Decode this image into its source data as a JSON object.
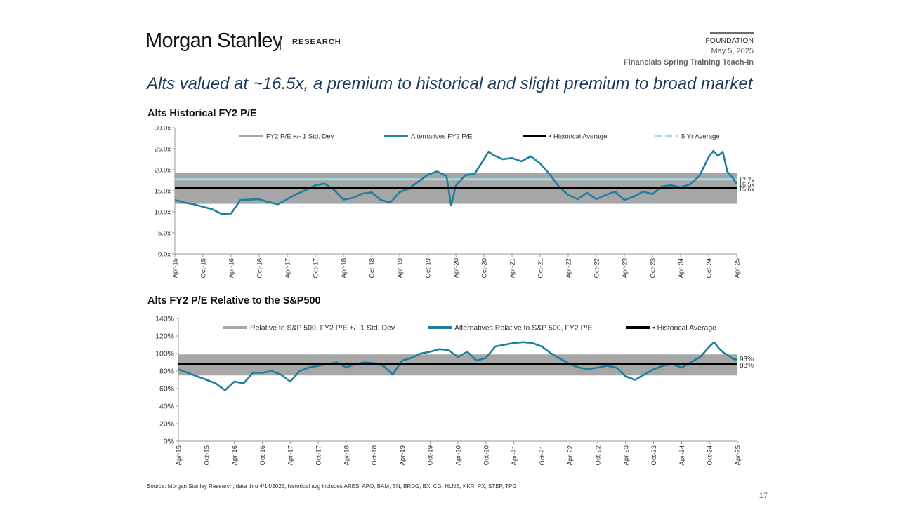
{
  "header": {
    "brand": "Morgan Stanley",
    "brand_sub": "RESEARCH",
    "tag": "FOUNDATION",
    "date": "May 5, 2025",
    "event": "Financials Spring Training Teach-In"
  },
  "title": "Alts valued at ~16.5x, a premium to historical and slight premium to broad market",
  "source": "Source: Morgan Stanley Research; data thru 4/14/2025, historical avg includes ARES, APO, BAM, BN, BRDG, BX, CG, HLNE, KKR, PX, STEP, TPG",
  "page_number": "17",
  "colors": {
    "band": "#a6a6a6",
    "line": "#1f7f9f",
    "average": "#000000",
    "five_yr": "#9fdcea"
  },
  "chart_data": [
    {
      "type": "line",
      "title": "Alts Historical FY2 P/E",
      "ylim": [
        0,
        30
      ],
      "y_ticks": [
        "0.0x",
        "5.0x",
        "10.0x",
        "15.0x",
        "20.0x",
        "25.0x",
        "30.0x"
      ],
      "x_ticks": [
        "Apr-15",
        "Oct-15",
        "Apr-16",
        "Oct-16",
        "Apr-17",
        "Oct-17",
        "Apr-18",
        "Oct-18",
        "Apr-19",
        "Oct-19",
        "Apr-20",
        "Oct-20",
        "Apr-21",
        "Oct-21",
        "Apr-22",
        "Oct-22",
        "Apr-23",
        "Oct-23",
        "Apr-24",
        "Oct-24",
        "Apr-25"
      ],
      "legend": [
        "FY2 P/E +/- 1 Std. Dev",
        "Alternatives FY2 P/E",
        "Historical Average",
        "5 Yr Average"
      ],
      "band": [
        11.9,
        19.3
      ],
      "historical_average": 15.6,
      "five_yr_average": 17.7,
      "end_labels": [
        "17.7x",
        "16.5x",
        "15.6x"
      ],
      "series": [
        {
          "name": "Alternatives FY2 P/E",
          "x": [
            "Apr-15",
            "Jun-15",
            "Aug-15",
            "Oct-15",
            "Dec-15",
            "Feb-16",
            "Apr-16",
            "Jun-16",
            "Aug-16",
            "Oct-16",
            "Dec-16",
            "Feb-17",
            "Apr-17",
            "Jun-17",
            "Aug-17",
            "Oct-17",
            "Dec-17",
            "Feb-18",
            "Apr-18",
            "Jun-18",
            "Aug-18",
            "Oct-18",
            "Dec-18",
            "Feb-19",
            "Apr-19",
            "Jun-19",
            "Aug-19",
            "Oct-19",
            "Dec-19",
            "Feb-20",
            "Mar-20",
            "Apr-20",
            "Jun-20",
            "Aug-20",
            "Oct-20",
            "Nov-20",
            "Dec-20",
            "Feb-21",
            "Apr-21",
            "Jun-21",
            "Aug-21",
            "Oct-21",
            "Dec-21",
            "Feb-22",
            "Apr-22",
            "Jun-22",
            "Aug-22",
            "Oct-22",
            "Dec-22",
            "Feb-23",
            "Apr-23",
            "Jun-23",
            "Aug-23",
            "Oct-23",
            "Dec-23",
            "Feb-24",
            "Apr-24",
            "Jun-24",
            "Aug-24",
            "Oct-24",
            "Nov-24",
            "Dec-24",
            "Jan-25",
            "Feb-25",
            "Mar-25",
            "Apr-25"
          ],
          "values": [
            12.8,
            12.2,
            11.8,
            11.2,
            10.6,
            9.5,
            9.6,
            12.8,
            12.9,
            13.0,
            12.3,
            11.8,
            13.0,
            14.2,
            15.2,
            16.3,
            16.7,
            15.2,
            12.9,
            13.3,
            14.3,
            14.6,
            12.8,
            12.2,
            14.7,
            15.5,
            17.2,
            18.8,
            19.6,
            18.5,
            11.5,
            16.2,
            18.7,
            19.0,
            22.5,
            24.3,
            23.5,
            22.5,
            22.8,
            22.0,
            23.2,
            21.5,
            19.0,
            16.0,
            14.0,
            13.0,
            14.5,
            13.0,
            14.0,
            14.8,
            12.8,
            13.6,
            14.8,
            14.2,
            16.0,
            16.3,
            15.8,
            16.5,
            18.5,
            23.0,
            24.5,
            23.3,
            24.3,
            19.5,
            18.3,
            16.5
          ]
        }
      ]
    },
    {
      "type": "line",
      "title": "Alts FY2 P/E Relative to the S&P500",
      "ylim": [
        0,
        140
      ],
      "y_ticks": [
        "0%",
        "20%",
        "40%",
        "60%",
        "80%",
        "100%",
        "120%",
        "140%"
      ],
      "x_ticks": [
        "Apr-15",
        "Oct-15",
        "Apr-16",
        "Oct-16",
        "Apr-17",
        "Oct-17",
        "Apr-18",
        "Oct-18",
        "Apr-19",
        "Oct-19",
        "Apr-20",
        "Oct-20",
        "Apr-21",
        "Oct-21",
        "Apr-22",
        "Oct-22",
        "Apr-23",
        "Oct-23",
        "Apr-24",
        "Oct-24",
        "Apr-25"
      ],
      "legend": [
        "Relative to S&P 500, FY2 P/E +/- 1 Std. Dev",
        "Alternatives Relative to S&P 500, FY2 P/E",
        "Historical Average"
      ],
      "band": [
        75,
        99
      ],
      "historical_average": 88,
      "end_labels": [
        "93%",
        "88%"
      ],
      "series": [
        {
          "name": "Alternatives Relative to S&P 500, FY2 P/E",
          "x": [
            "Apr-15",
            "Jun-15",
            "Aug-15",
            "Oct-15",
            "Dec-15",
            "Feb-16",
            "Apr-16",
            "Jun-16",
            "Aug-16",
            "Oct-16",
            "Dec-16",
            "Feb-17",
            "Apr-17",
            "Jun-17",
            "Aug-17",
            "Oct-17",
            "Dec-17",
            "Feb-18",
            "Apr-18",
            "Jun-18",
            "Aug-18",
            "Oct-18",
            "Dec-18",
            "Feb-19",
            "Apr-19",
            "Jun-19",
            "Aug-19",
            "Oct-19",
            "Dec-19",
            "Feb-20",
            "Apr-20",
            "Jun-20",
            "Aug-20",
            "Oct-20",
            "Dec-20",
            "Feb-21",
            "Apr-21",
            "Jun-21",
            "Aug-21",
            "Oct-21",
            "Dec-21",
            "Feb-22",
            "Apr-22",
            "Jun-22",
            "Aug-22",
            "Oct-22",
            "Dec-22",
            "Feb-23",
            "Apr-23",
            "Jun-23",
            "Aug-23",
            "Oct-23",
            "Dec-23",
            "Feb-24",
            "Apr-24",
            "Jun-24",
            "Aug-24",
            "Oct-24",
            "Nov-24",
            "Dec-24",
            "Jan-25",
            "Feb-25",
            "Mar-25",
            "Apr-25"
          ],
          "values": [
            82,
            78,
            74,
            70,
            66,
            58,
            68,
            66,
            78,
            78,
            80,
            76,
            68,
            80,
            84,
            86,
            88,
            90,
            84,
            88,
            90,
            89,
            86,
            76,
            92,
            95,
            100,
            102,
            105,
            104,
            96,
            102,
            92,
            95,
            108,
            110,
            112,
            113,
            112,
            108,
            100,
            94,
            88,
            84,
            82,
            84,
            86,
            84,
            74,
            70,
            76,
            82,
            86,
            88,
            84,
            90,
            96,
            108,
            113,
            106,
            101,
            98,
            94,
            93
          ]
        }
      ]
    }
  ]
}
